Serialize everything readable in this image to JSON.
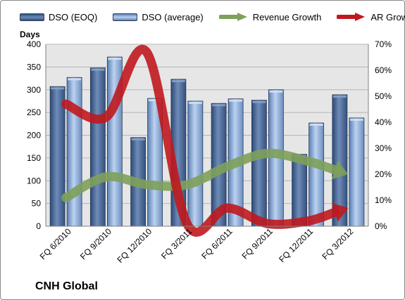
{
  "colors": {
    "dso_eoq": "#4f6a96",
    "dso_avg": "#7fa2d4",
    "revenue_growth": "#7ea05a",
    "ar_growth": "#c0181e",
    "plot_background": "#e6e6e6"
  },
  "company_label": "CNH Global",
  "chart_data": {
    "type": "bar",
    "categories": [
      "FQ 6/2010",
      "FQ 9/2010",
      "FQ 12/2010",
      "FQ 3/2011",
      "FQ 6/2011",
      "FQ 9/2011",
      "FQ 12/2011",
      "FQ 3/2012"
    ],
    "series": [
      {
        "name": "DSO (EOQ)",
        "type": "bar",
        "axis": "left",
        "values": [
          307,
          348,
          195,
          323,
          270,
          277,
          158,
          289
        ]
      },
      {
        "name": "DSO (average)",
        "type": "bar",
        "axis": "left",
        "values": [
          327,
          372,
          281,
          275,
          280,
          300,
          227,
          238
        ]
      },
      {
        "name": "Revenue Growth",
        "type": "line",
        "axis": "right",
        "values": [
          11,
          19,
          16,
          16,
          23,
          28,
          25,
          20
        ]
      },
      {
        "name": "AR Growth",
        "type": "line",
        "axis": "right",
        "values": [
          47,
          42,
          67,
          1,
          7,
          1,
          2,
          7
        ]
      }
    ],
    "ylabel": "Days",
    "ylim": [
      0,
      400
    ],
    "yticks": [
      "0",
      "50",
      "100",
      "150",
      "200",
      "250",
      "300",
      "350",
      "400"
    ],
    "y2lim": [
      0,
      70
    ],
    "y2ticks": [
      "0%",
      "10%",
      "20%",
      "30%",
      "40%",
      "50%",
      "60%",
      "70%"
    ],
    "grid": true,
    "legend_position": "top"
  }
}
